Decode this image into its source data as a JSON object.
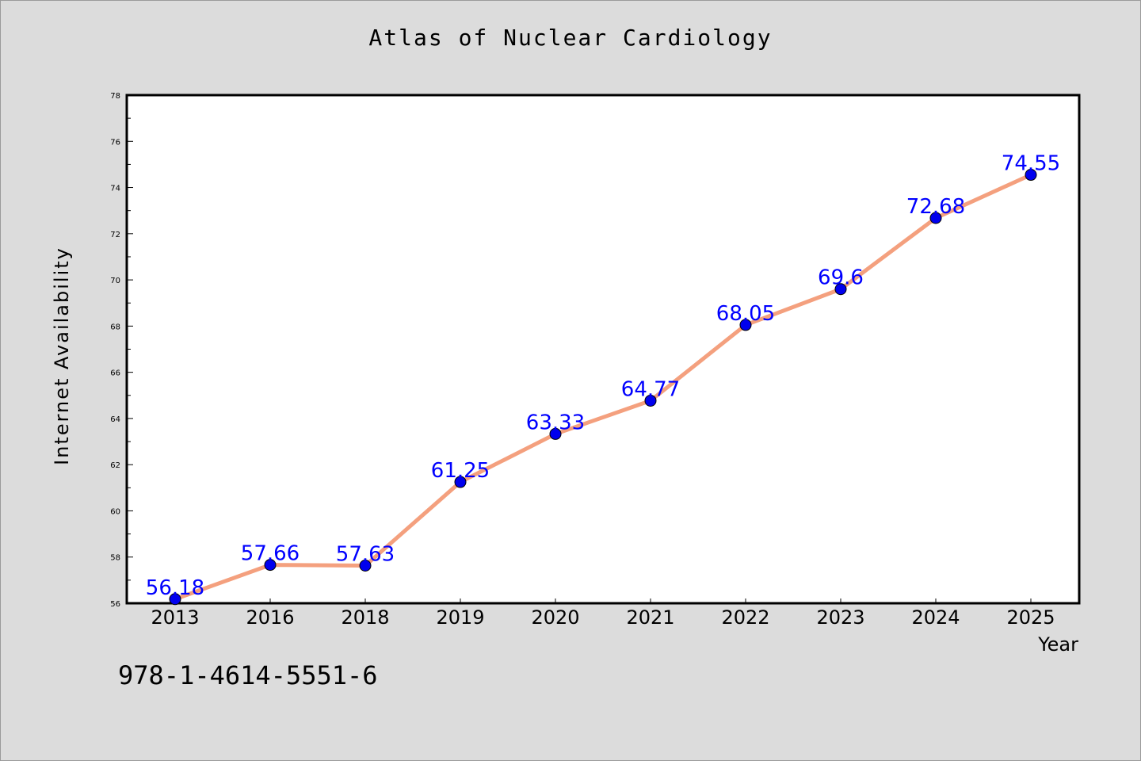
{
  "chart_data": {
    "type": "line",
    "title": "Atlas of Nuclear Cardiology",
    "xlabel": "Year",
    "ylabel": "Internet Availability",
    "categories": [
      "2013",
      "2016",
      "2018",
      "2019",
      "2020",
      "2021",
      "2022",
      "2023",
      "2024",
      "2025"
    ],
    "values": [
      56.18,
      57.66,
      57.63,
      61.25,
      63.33,
      64.77,
      68.05,
      69.6,
      72.68,
      74.55
    ],
    "data_labels": [
      "56.18",
      "57.66",
      "57.63",
      "61.25",
      "63.33",
      "64.77",
      "68.05",
      "69.6",
      "72.68",
      "74.55"
    ],
    "ylim": [
      56,
      78
    ],
    "yticks": [
      "56",
      "58",
      "60",
      "62",
      "64",
      "66",
      "68",
      "70",
      "72",
      "74",
      "76",
      "78"
    ],
    "grid": false,
    "line_color": "#f4a07e",
    "marker_color": "#0000ee",
    "label_color": "#0000ff"
  },
  "footer": {
    "isbn": "978-1-4614-5551-6"
  }
}
